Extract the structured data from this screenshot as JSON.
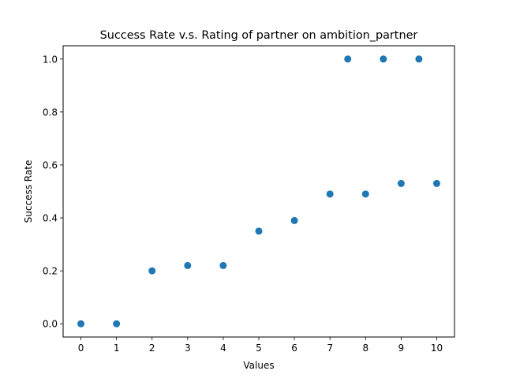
{
  "chart_data": {
    "type": "scatter",
    "title": "Success Rate v.s. Rating of partner on ambition_partner",
    "xlabel": "Values",
    "ylabel": "Success Rate",
    "xlim": [
      -0.5,
      10.5
    ],
    "ylim": [
      -0.05,
      1.05
    ],
    "xticks": [
      0,
      1,
      2,
      3,
      4,
      5,
      6,
      7,
      8,
      9,
      10
    ],
    "xtick_labels": [
      "0",
      "1",
      "2",
      "3",
      "4",
      "5",
      "6",
      "7",
      "8",
      "9",
      "10"
    ],
    "yticks": [
      0.0,
      0.2,
      0.4,
      0.6,
      0.8,
      1.0
    ],
    "ytick_labels": [
      "0.0",
      "0.2",
      "0.4",
      "0.6",
      "0.8",
      "1.0"
    ],
    "grid": false,
    "legend": false,
    "marker_color": "#1f77b4",
    "points": [
      {
        "x": 0,
        "y": 0.0
      },
      {
        "x": 1,
        "y": 0.0
      },
      {
        "x": 2,
        "y": 0.2
      },
      {
        "x": 3,
        "y": 0.22
      },
      {
        "x": 4,
        "y": 0.22
      },
      {
        "x": 5,
        "y": 0.35
      },
      {
        "x": 6,
        "y": 0.39
      },
      {
        "x": 7,
        "y": 0.49
      },
      {
        "x": 7.5,
        "y": 1.0
      },
      {
        "x": 8,
        "y": 0.49
      },
      {
        "x": 8.5,
        "y": 1.0
      },
      {
        "x": 9,
        "y": 0.53
      },
      {
        "x": 9.5,
        "y": 1.0
      },
      {
        "x": 10,
        "y": 0.53
      }
    ]
  }
}
